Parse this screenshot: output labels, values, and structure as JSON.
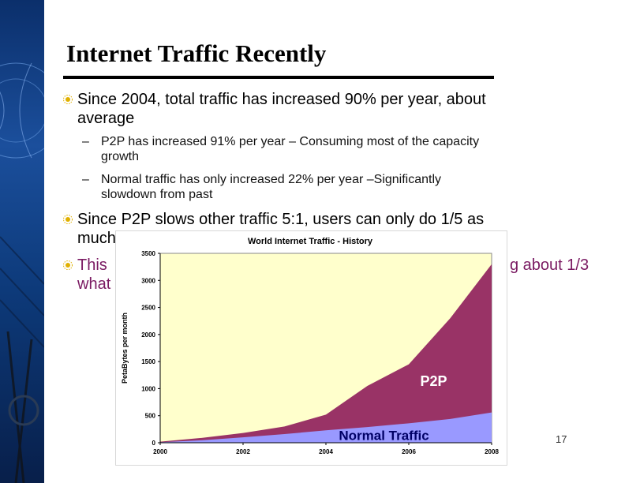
{
  "slide": {
    "title": "Internet Traffic Recently",
    "page_number": "17",
    "bullets": [
      {
        "line1": "Since 2004, total traffic has increased 90% per year, about",
        "line2": "average"
      },
      {
        "line1": "Since P2P slows other traffic 5:1, users can only do 1/5 as",
        "line2": "much"
      },
      {
        "line1": "This",
        "line1_right": "g about 1/3",
        "line2": "what"
      }
    ],
    "subbullets": [
      {
        "dash": "–",
        "line1": "P2P has increased 91% per year – Consuming most of the capacity",
        "line2": "growth"
      },
      {
        "dash": "–",
        "line1": "Normal traffic has only increased 22% per year –Significantly",
        "line2": "slowdown from past"
      }
    ],
    "colors": {
      "bullet_text": "#000000",
      "purple_text": "#7a1a62"
    }
  },
  "chart_data": {
    "type": "area",
    "title": "World Internet Traffic - History",
    "ylabel": "PetaBytes per month",
    "xlabel": "",
    "x": [
      2000,
      2001,
      2002,
      2003,
      2004,
      2005,
      2006,
      2007,
      2008
    ],
    "xticks": [
      "2000",
      "2002",
      "2004",
      "2006",
      "2008"
    ],
    "yticks": [
      "0",
      "500",
      "1000",
      "1500",
      "2000",
      "2500",
      "3000",
      "3500"
    ],
    "xlim": [
      2000,
      2008
    ],
    "ylim": [
      0,
      3500
    ],
    "series": [
      {
        "name": "Normal Traffic",
        "color": "#9999ff",
        "values": [
          10,
          45,
          100,
          160,
          230,
          290,
          360,
          440,
          560
        ]
      },
      {
        "name": "P2P",
        "color": "#993366",
        "values": [
          20,
          90,
          180,
          300,
          520,
          1050,
          1450,
          2300,
          3300
        ]
      }
    ],
    "plot_background": "#ffffcc",
    "grid": false
  }
}
